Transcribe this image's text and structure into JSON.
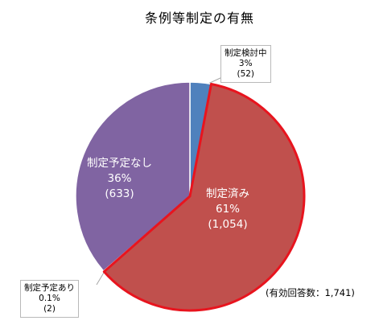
{
  "chart_data": {
    "type": "pie",
    "title": "条例等制定の有無",
    "slices": [
      {
        "key": "kentou",
        "label": "制定検討中",
        "percent_text": "3%",
        "count_text": "(52)",
        "value": 52,
        "color": "#4f81bd"
      },
      {
        "key": "zumi",
        "label": "制定済み",
        "percent_text": "61%",
        "count_text": "(1,054)",
        "value": 1054,
        "color": "#c0504d",
        "outline": "#e8141e"
      },
      {
        "key": "ari",
        "label": "制定予定あり",
        "percent_text": "0.1%",
        "count_text": "(2)",
        "value": 2,
        "color": "#9bbb59"
      },
      {
        "key": "nashi",
        "label": "制定予定なし",
        "percent_text": "36%",
        "count_text": "(633)",
        "value": 633,
        "color": "#8064a2"
      }
    ],
    "total_note": "(有効回答数：1,741)",
    "total": 1741
  }
}
